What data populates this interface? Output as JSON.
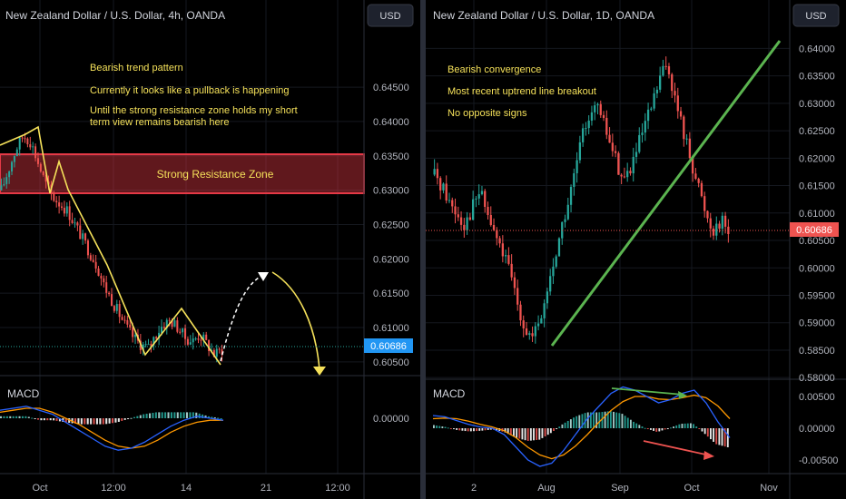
{
  "chart_data": [
    {
      "type": "candlestick",
      "title": "New Zealand Dollar / U.S. Dollar, 4h, OANDA",
      "currency_button": "USD",
      "price_ticks": [
        "0.64500",
        "0.64000",
        "0.63500",
        "0.63000",
        "0.62500",
        "0.62000",
        "0.61500",
        "0.61000",
        "0.60500"
      ],
      "last_price": "0.60686",
      "time_ticks": [
        "Oct",
        "12:00",
        "14",
        "21",
        "12:00"
      ],
      "annotations": [
        "Bearish trend pattern",
        "Currently it looks like a pullback is happening",
        "Until the strong resistance zone holds my short",
        "term view remains bearish here"
      ],
      "zone_label": "Strong Resistance Zone",
      "zone_range": [
        0.6272,
        0.6319
      ],
      "ylim": [
        0.603,
        0.6495
      ],
      "price_path": [
        0.63,
        0.633,
        0.636,
        0.638,
        0.637,
        0.634,
        0.631,
        0.629,
        0.628,
        0.627,
        0.625,
        0.623,
        0.621,
        0.619,
        0.616,
        0.614,
        0.612,
        0.61,
        0.6085,
        0.6075,
        0.607,
        0.609,
        0.6105,
        0.611,
        0.61,
        0.6085,
        0.608,
        0.609,
        0.6075,
        0.606,
        0.6068
      ],
      "indicator": {
        "name": "MACD",
        "ticks": [
          "0.00000"
        ],
        "macd": [
          0.0004,
          0.0005,
          0.0006,
          0.0004,
          0.0002,
          -0.0002,
          -0.0006,
          -0.001,
          -0.0014,
          -0.0016,
          -0.0015,
          -0.0012,
          -0.0008,
          -0.0004,
          -0.0001,
          0.0001,
          0.0,
          -0.0001
        ],
        "signal": [
          0.0003,
          0.0004,
          0.0005,
          0.0005,
          0.0003,
          0.0,
          -0.0003,
          -0.0007,
          -0.0011,
          -0.0014,
          -0.0015,
          -0.0014,
          -0.0011,
          -0.0007,
          -0.0004,
          -0.0002,
          -0.0001,
          -0.0001
        ],
        "histogram": [
          0.0001,
          0.0001,
          0.0001,
          -0.0001,
          -0.0001,
          -0.0002,
          -0.0003,
          -0.0003,
          -0.0003,
          -0.0002,
          0.0,
          0.0002,
          0.0003,
          0.0003,
          0.0003,
          0.0003,
          0.0001,
          0.0
        ]
      }
    },
    {
      "type": "candlestick",
      "title": "New Zealand Dollar / U.S. Dollar, 1D, OANDA",
      "currency_button": "USD",
      "price_ticks": [
        "0.64000",
        "0.63500",
        "0.63000",
        "0.62500",
        "0.62000",
        "0.61500",
        "0.61000",
        "0.60500",
        "0.60000",
        "0.59500",
        "0.59000",
        "0.58500",
        "0.58000"
      ],
      "last_price": "0.60686",
      "time_ticks": [
        "2",
        "Aug",
        "Sep",
        "Oct",
        "Nov"
      ],
      "annotations": [
        "Bearish convergence",
        "Most recent uptrend line breakout",
        "No opposite signs"
      ],
      "ylim": [
        0.5797,
        0.6442
      ],
      "price_path": [
        0.617,
        0.615,
        0.612,
        0.61,
        0.608,
        0.611,
        0.614,
        0.61,
        0.606,
        0.603,
        0.599,
        0.594,
        0.589,
        0.587,
        0.59,
        0.596,
        0.602,
        0.608,
        0.613,
        0.62,
        0.626,
        0.63,
        0.628,
        0.624,
        0.62,
        0.616,
        0.618,
        0.622,
        0.626,
        0.63,
        0.635,
        0.637,
        0.63,
        0.625,
        0.62,
        0.615,
        0.61,
        0.607,
        0.609,
        0.6068
      ],
      "indicator": {
        "name": "MACD",
        "ticks": [
          "0.00500",
          "0.00000",
          "-0.00500"
        ],
        "macd": [
          0.002,
          0.0018,
          0.0012,
          0.0006,
          0.0002,
          0.0,
          -0.001,
          -0.003,
          -0.005,
          -0.006,
          -0.0055,
          -0.0035,
          -0.001,
          0.0015,
          0.0035,
          0.0055,
          0.0065,
          0.006,
          0.005,
          0.004,
          0.0045,
          0.0055,
          0.006,
          0.004,
          0.001,
          -0.0015
        ],
        "signal": [
          0.0015,
          0.0016,
          0.0015,
          0.0011,
          0.0006,
          0.0002,
          -0.0004,
          -0.0015,
          -0.003,
          -0.0042,
          -0.0048,
          -0.0042,
          -0.0028,
          -0.001,
          0.001,
          0.0028,
          0.0042,
          0.005,
          0.005,
          0.0046,
          0.0045,
          0.0048,
          0.0052,
          0.0048,
          0.0035,
          0.0015
        ],
        "histogram": [
          0.0005,
          0.0002,
          -0.0003,
          -0.0005,
          -0.0004,
          -0.0002,
          -0.0006,
          -0.0015,
          -0.002,
          -0.0018,
          -0.0007,
          0.0007,
          0.0018,
          0.0025,
          0.0025,
          0.0027,
          0.0023,
          0.001,
          0.0,
          -0.0006,
          0.0,
          0.0007,
          0.0008,
          -0.0008,
          -0.0025,
          -0.003
        ]
      }
    }
  ],
  "colors": {
    "up": "#26a69a",
    "down": "#ef5350",
    "annotation": "#f5e15a",
    "zone": "#e53946",
    "trendline": "#5bb450",
    "macd": "#2962ff",
    "signal": "#ff9800",
    "price_badge": "#ef5350",
    "price_badge_left": "#2196f3"
  }
}
